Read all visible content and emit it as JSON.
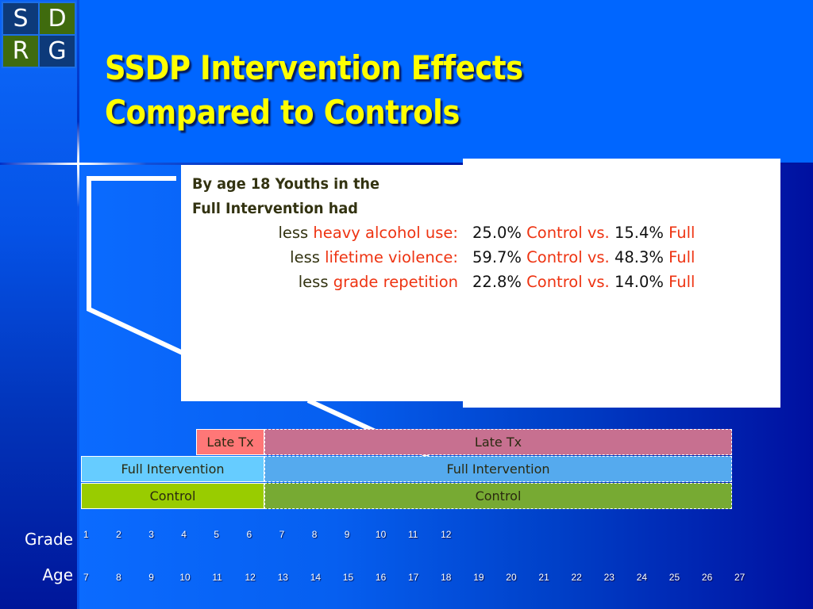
{
  "logo": {
    "letters": [
      "S",
      "D",
      "R",
      "G"
    ]
  },
  "title": {
    "line1": "SSDP Intervention Effects",
    "line2": "Compared to Controls"
  },
  "callout": {
    "intro_line1": "By age 18 Youths in the",
    "intro_line2": "Full Intervention had",
    "outcomes": [
      {
        "prefix": "less",
        "label": "heavy alcohol use:",
        "control_value": "25.0%",
        "control_label": "Control vs.",
        "full_value": "15.4%",
        "full_label": "Full"
      },
      {
        "prefix": "less",
        "label": "lifetime violence:",
        "control_value": "59.7%",
        "control_label": "Control vs.",
        "full_value": "48.3%",
        "full_label": "Full"
      },
      {
        "prefix": "less",
        "label": "grade repetition",
        "control_value": "22.8%",
        "control_label": "Control vs.",
        "full_value": "14.0%",
        "full_label": "Full"
      }
    ]
  },
  "timeline": {
    "rows": [
      {
        "name": "late-tx",
        "early_label": "Late Tx",
        "later_label": "Late Tx",
        "early_color": "#ff7777",
        "later_color": "#c77090"
      },
      {
        "name": "full-intervention",
        "early_label": "Full Intervention",
        "later_label": "Full Intervention",
        "early_color": "#66ccff",
        "later_color": "#55aaee"
      },
      {
        "name": "control",
        "early_label": "Control",
        "later_label": "Control",
        "early_color": "#99cc00",
        "later_color": "#77aa33"
      }
    ],
    "grade_label": "Grade",
    "age_label": "Age",
    "grades": [
      "1",
      "2",
      "3",
      "4",
      "5",
      "6",
      "7",
      "8",
      "9",
      "10",
      "11",
      "12"
    ],
    "ages": [
      "7",
      "8",
      "9",
      "10",
      "11",
      "12",
      "13",
      "14",
      "15",
      "16",
      "17",
      "18",
      "19",
      "20",
      "21",
      "22",
      "23",
      "24",
      "25",
      "26",
      "27"
    ]
  },
  "colors": {
    "title": "#ffff00",
    "highlight": "#ee3311",
    "background": "#0066ff"
  }
}
